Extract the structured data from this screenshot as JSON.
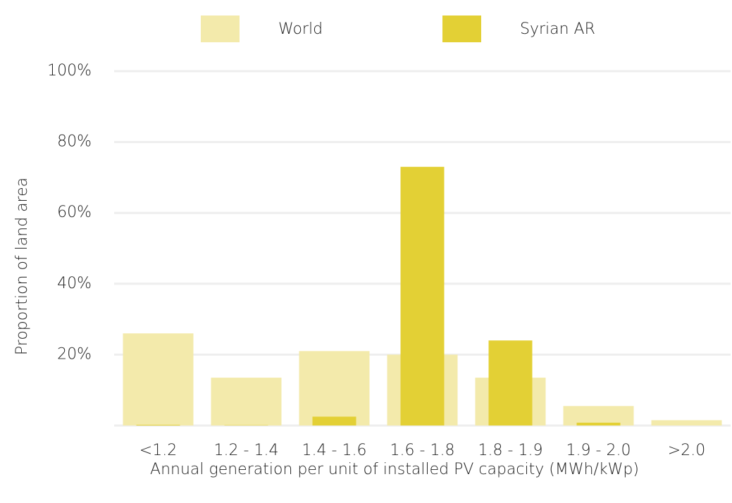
{
  "chart_data": {
    "type": "bar",
    "x_label": "Annual generation per unit of installed PV capacity (MWh/kWp)",
    "y_label": "Proportion of land area",
    "categories": [
      "<1.2",
      "1.2 - 1.4",
      "1.4 - 1.6",
      "1.6 - 1.8",
      "1.8 - 1.9",
      "1.9 - 2.0",
      ">2.0"
    ],
    "series": [
      {
        "name": "World",
        "color": "#f3eaab",
        "values": [
          26,
          13.5,
          21,
          20,
          13.5,
          5.5,
          1.5
        ]
      },
      {
        "name": "Syrian AR",
        "color": "#e3d035",
        "values": [
          0.2,
          0.1,
          2.5,
          73,
          24,
          0.8,
          0
        ]
      }
    ],
    "ylim": [
      0,
      100
    ],
    "yticks": [
      {
        "value": 20,
        "label": "20%"
      },
      {
        "value": 40,
        "label": "40%"
      },
      {
        "value": 60,
        "label": "60%"
      },
      {
        "value": 80,
        "label": "80%"
      },
      {
        "value": 100,
        "label": "100%"
      }
    ],
    "grid": true
  }
}
